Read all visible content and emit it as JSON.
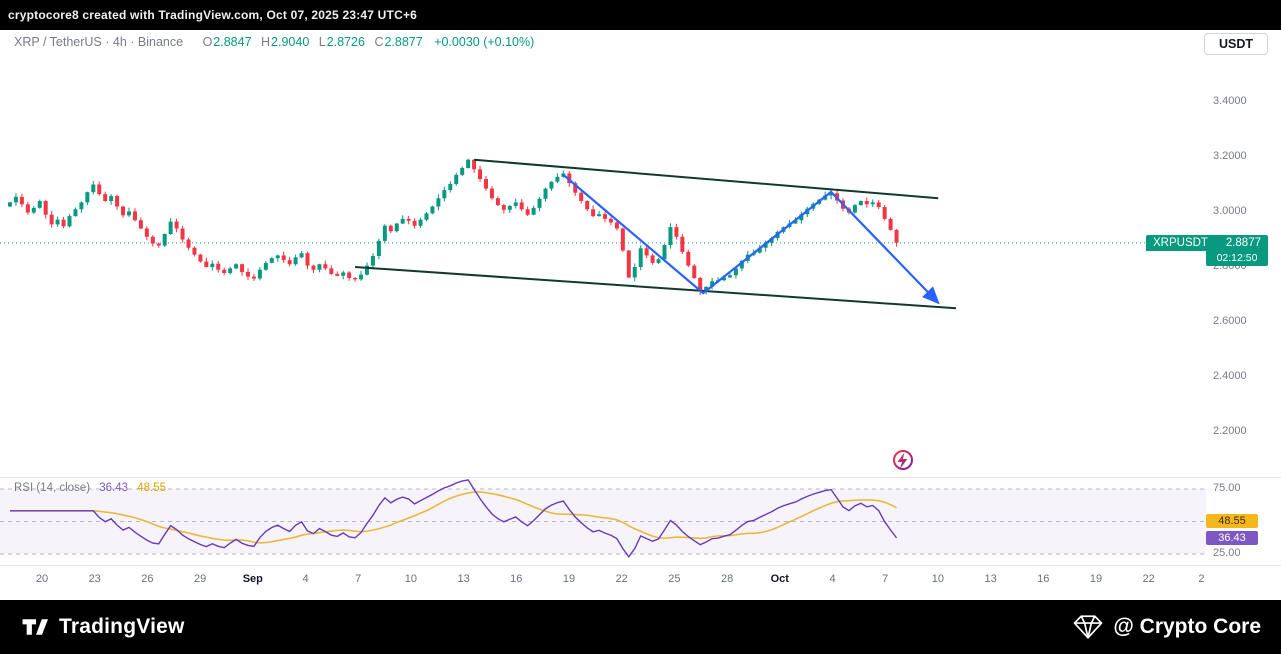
{
  "topbar": {
    "attribution": "cryptocore8 created with TradingView.com, Oct 07, 2025 23:47 UTC+6"
  },
  "header": {
    "symbol_title": "XRP / TetherUS · 4h · Binance",
    "o_label": "O",
    "o_value": "2.8847",
    "h_label": "H",
    "h_value": "2.9040",
    "l_label": "L",
    "l_value": "2.8726",
    "c_label": "C",
    "c_value": "2.8877",
    "change": "+0.0030 (+0.10%)"
  },
  "usdt_button": {
    "label": "USDT"
  },
  "price_badge": {
    "symbol": "XRPUSDT",
    "price": "2.8877",
    "countdown": "02:12:50"
  },
  "rsi_panel": {
    "label": "RSI (14, close)",
    "rsi_value": "36.43",
    "ma_value": "48.55",
    "badge_ma": "48.55",
    "badge_rsi": "36.43"
  },
  "footer": {
    "brand": "TradingView",
    "handle": "@ Crypto Core"
  },
  "chart_data": {
    "type": "candlestick",
    "symbol": "XRP/TetherUS",
    "interval": "4h",
    "exchange": "Binance",
    "title": "XRP / TetherUS · 4h · Binance",
    "last_price": 2.8877,
    "ohlc_display": {
      "open": 2.8847,
      "high": 2.904,
      "low": 2.8726,
      "close": 2.8877,
      "change": "+0.0030 (+0.10%)"
    },
    "price_axis_ticks": [
      "3.4000",
      "3.2000",
      "3.0000",
      "2.8000",
      "2.6000",
      "2.4000",
      "2.2000"
    ],
    "time_axis_labels": [
      "20",
      "23",
      "26",
      "29",
      "Sep",
      "4",
      "7",
      "10",
      "13",
      "16",
      "19",
      "22",
      "25",
      "28",
      "Oct",
      "4",
      "7",
      "10",
      "13",
      "16",
      "19",
      "22",
      "2"
    ],
    "first_open": 3.02,
    "closes": [
      3.035,
      3.055,
      3.028,
      2.998,
      3.015,
      3.04,
      2.99,
      2.955,
      2.972,
      2.948,
      2.985,
      3.01,
      3.035,
      3.072,
      3.1,
      3.065,
      3.04,
      3.058,
      3.02,
      2.988,
      3.002,
      2.97,
      2.94,
      2.91,
      2.885,
      2.878,
      2.92,
      2.965,
      2.94,
      2.9,
      2.87,
      2.845,
      2.82,
      2.8,
      2.812,
      2.79,
      2.778,
      2.795,
      2.81,
      2.782,
      2.765,
      2.758,
      2.79,
      2.815,
      2.832,
      2.842,
      2.825,
      2.81,
      2.835,
      2.85,
      2.805,
      2.79,
      2.81,
      2.795,
      2.775,
      2.768,
      2.78,
      2.76,
      2.755,
      2.772,
      2.805,
      2.84,
      2.895,
      2.95,
      2.93,
      2.958,
      2.975,
      2.968,
      2.95,
      2.972,
      2.995,
      3.02,
      3.05,
      3.08,
      3.102,
      3.135,
      3.16,
      3.19,
      3.155,
      3.12,
      3.085,
      3.05,
      3.025,
      3.008,
      3.022,
      3.035,
      3.01,
      2.99,
      3.015,
      3.048,
      3.085,
      3.11,
      3.128,
      3.14,
      3.105,
      3.07,
      3.04,
      3.01,
      2.985,
      2.992,
      2.975,
      2.962,
      2.94,
      2.86,
      2.762,
      2.8,
      2.868,
      2.842,
      2.815,
      2.828,
      2.88,
      2.945,
      2.91,
      2.855,
      2.805,
      2.76,
      2.712,
      2.728,
      2.748,
      2.752,
      2.762,
      2.77,
      2.795,
      2.822,
      2.845,
      2.852,
      2.87,
      2.888,
      2.905,
      2.928,
      2.945,
      2.958,
      2.97,
      2.992,
      3.012,
      3.03,
      3.045,
      3.06,
      3.068,
      3.042,
      3.012,
      2.998,
      3.025,
      3.04,
      3.028,
      3.035,
      3.018,
      2.975,
      2.935,
      2.888
    ],
    "overlays": {
      "channel_upper": [
        [
          78,
          3.19
        ],
        [
          156,
          3.05
        ]
      ],
      "channel_lower": [
        [
          58,
          2.8
        ],
        [
          159,
          2.65
        ]
      ],
      "arrow_path": [
        [
          93,
          3.135
        ],
        [
          116.5,
          2.705
        ],
        [
          138,
          3.073
        ],
        [
          156,
          2.67
        ]
      ]
    },
    "rsi": {
      "period": 14,
      "upper": 75,
      "lower": 25,
      "level_upper": "75.00",
      "level_lower": "25.00",
      "value": 36.43,
      "ma_value": 48.55
    },
    "colors": {
      "up": "#089981",
      "down": "#f23645",
      "channel": "#0e3b2e",
      "arrow": "#2962ff",
      "rsi": "#673ab7",
      "rsi_ma": "#e8b93c",
      "badge": "#089981"
    }
  }
}
